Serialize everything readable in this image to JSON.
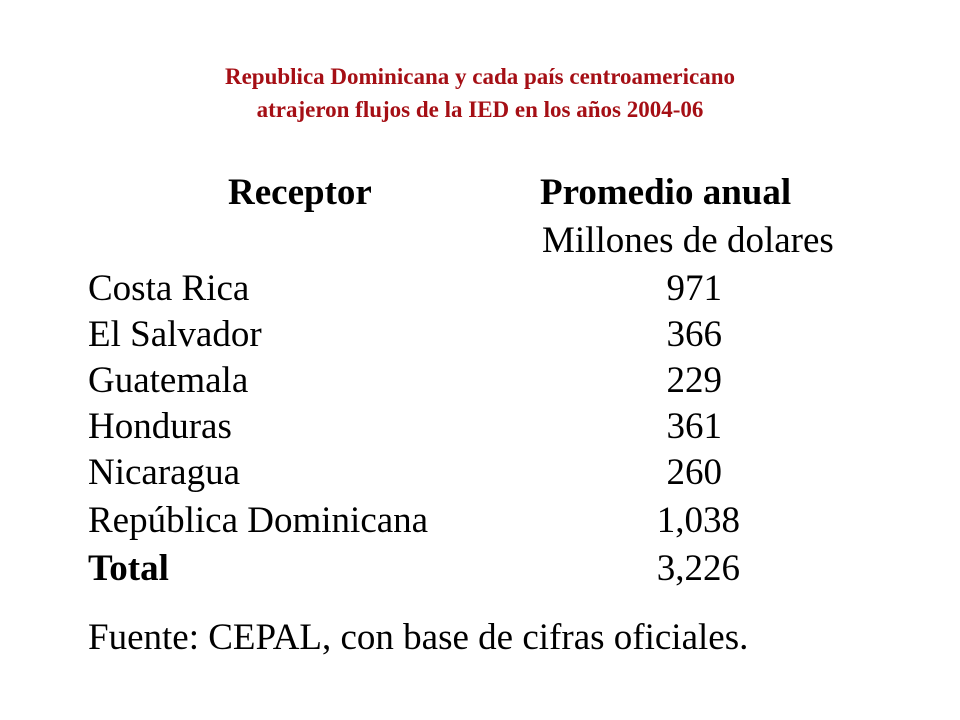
{
  "title": {
    "line1": "Republica Dominicana y cada país centroamericano",
    "line2": "atrajeron flujos de la IED en los años 2004-06",
    "color": "#A50F15"
  },
  "table": {
    "col1_header": "Receptor",
    "col2_header": "Promedio anual",
    "col2_subheader": "Millones de dolares",
    "rows": [
      {
        "label": "Costa Rica",
        "value": "971"
      },
      {
        "label": "El Salvador",
        "value": "366"
      },
      {
        "label": "Guatemala",
        "value": "229"
      },
      {
        "label": "Honduras",
        "value": "361"
      },
      {
        "label": "Nicaragua",
        "value": "260"
      },
      {
        "label": "República Dominicana",
        "value": "1,038"
      }
    ],
    "total": {
      "label": "Total",
      "value": "3,226"
    }
  },
  "source": "Fuente: CEPAL, con base de cifras oficiales."
}
